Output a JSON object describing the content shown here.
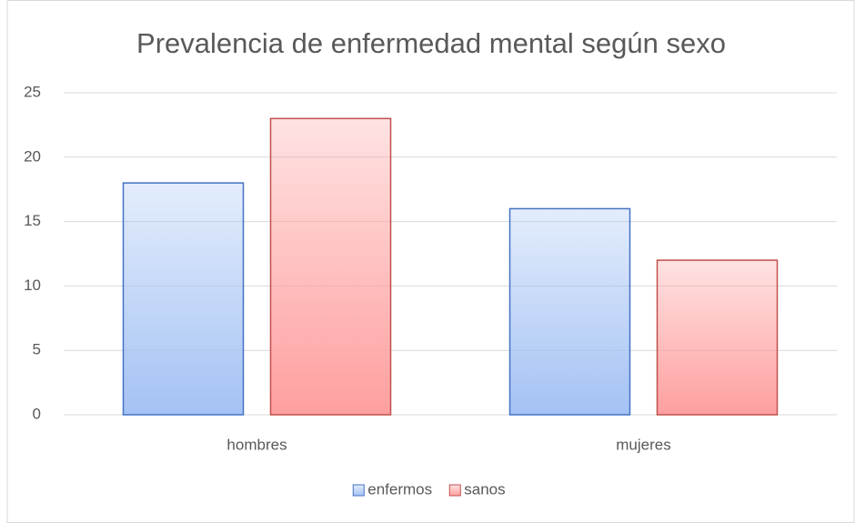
{
  "chart_data": {
    "type": "bar",
    "title": "Prevalencia de enfermedad mental según sexo",
    "categories": [
      "hombres",
      "mujeres"
    ],
    "series": [
      {
        "name": "enfermos",
        "color": "#a4c2f4",
        "edge_color": "#4472c4",
        "values": [
          18,
          16
        ]
      },
      {
        "name": "sanos",
        "color": "#ff9f9f",
        "edge_color": "#c0504d",
        "values": [
          23,
          12
        ]
      }
    ],
    "ylim": [
      0,
      25
    ],
    "yticks": [
      0,
      5,
      10,
      15,
      20,
      25
    ],
    "grid": true,
    "legend": "bottom"
  }
}
